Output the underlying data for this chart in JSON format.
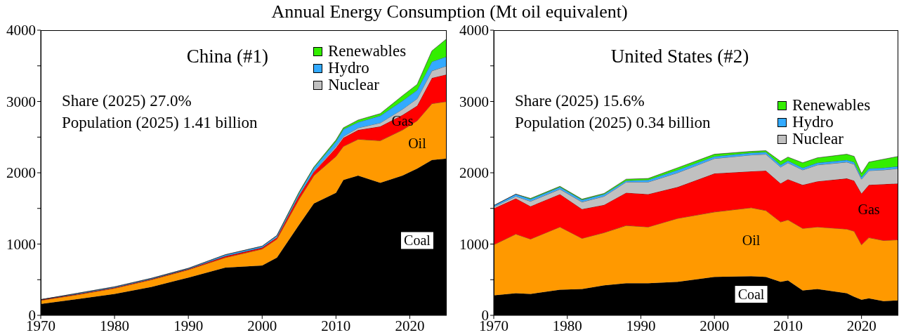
{
  "chart_data": [
    {
      "type": "area",
      "title": "Annual Energy Consumption (Mt oil equivalent)",
      "subtitle": "China (#1)",
      "stacked": true,
      "legend": "top right",
      "annotations": [
        "Share (2025) 27.0%",
        "Population (2025) 1.41 billion"
      ],
      "x": [
        1970,
        1975,
        1980,
        1985,
        1990,
        1995,
        2000,
        2002,
        2005,
        2007,
        2010,
        2011,
        2013,
        2016,
        2019,
        2021,
        2023,
        2025
      ],
      "series": [
        {
          "name": "Coal",
          "color": "#000000",
          "values": [
            160,
            230,
            300,
            400,
            530,
            670,
            700,
            810,
            1270,
            1570,
            1720,
            1900,
            1960,
            1860,
            1960,
            2060,
            2180,
            2200
          ]
        },
        {
          "name": "Oil",
          "color": "#ff9900",
          "values": [
            50,
            60,
            80,
            100,
            110,
            140,
            230,
            260,
            360,
            390,
            510,
            470,
            510,
            590,
            640,
            670,
            790,
            800
          ]
        },
        {
          "name": "Gas",
          "color": "#ff0000",
          "values": [
            10,
            10,
            10,
            10,
            10,
            20,
            20,
            20,
            50,
            50,
            120,
            120,
            130,
            200,
            210,
            210,
            360,
            380
          ]
        },
        {
          "name": "Nuclear",
          "color": "#c0c0c0",
          "values": [
            0,
            0,
            0,
            0,
            0,
            0,
            0,
            10,
            10,
            10,
            20,
            20,
            30,
            50,
            80,
            100,
            100,
            120
          ]
        },
        {
          "name": "Hydro",
          "color": "#33aaff",
          "values": [
            0,
            10,
            10,
            10,
            10,
            20,
            20,
            20,
            30,
            50,
            70,
            100,
            80,
            100,
            120,
            120,
            130,
            130
          ]
        },
        {
          "name": "Renewables",
          "color": "#33ee00",
          "values": [
            0,
            0,
            0,
            0,
            0,
            0,
            0,
            0,
            10,
            10,
            20,
            20,
            30,
            30,
            70,
            80,
            150,
            250
          ]
        }
      ],
      "xlim": [
        1970,
        2025
      ],
      "xticks": [
        1970,
        1980,
        1990,
        2000,
        2010,
        2020
      ],
      "ylim": [
        0,
        4000
      ],
      "yticks": [
        0,
        {
          "value": 500,
          "label": null
        },
        1000,
        {
          "value": 1500,
          "label": null
        },
        2000,
        {
          "value": 2500,
          "label": null
        },
        3000,
        {
          "value": 3500,
          "label": null
        },
        4000
      ]
    },
    {
      "type": "area",
      "subtitle": "United States (#2)",
      "stacked": true,
      "legend": "right",
      "annotations": [
        "Share (2025) 15.6%",
        "Population (2025) 0.34 billion"
      ],
      "x": [
        1970,
        1973,
        1975,
        1979,
        1982,
        1985,
        1988,
        1991,
        1995,
        2000,
        2005,
        2007,
        2009,
        2010,
        2012,
        2014,
        2018,
        2019,
        2020,
        2021,
        2023,
        2025
      ],
      "series": [
        {
          "name": "Coal",
          "color": "#000000",
          "values": [
            280,
            310,
            300,
            360,
            370,
            420,
            450,
            450,
            470,
            540,
            550,
            540,
            470,
            490,
            350,
            370,
            310,
            260,
            220,
            240,
            200,
            210
          ]
        },
        {
          "name": "Oil",
          "color": "#ff9900",
          "values": [
            710,
            830,
            770,
            880,
            710,
            740,
            810,
            790,
            890,
            910,
            960,
            930,
            840,
            850,
            870,
            870,
            900,
            920,
            770,
            850,
            850,
            850
          ]
        },
        {
          "name": "Gas",
          "color": "#ff0000",
          "values": [
            510,
            500,
            460,
            460,
            410,
            390,
            460,
            460,
            440,
            540,
            510,
            560,
            540,
            570,
            610,
            640,
            710,
            710,
            720,
            740,
            790,
            790
          ]
        },
        {
          "name": "Nuclear",
          "color": "#c0c0c0",
          "values": [
            20,
            30,
            70,
            70,
            100,
            120,
            150,
            170,
            200,
            210,
            230,
            230,
            230,
            230,
            210,
            230,
            230,
            230,
            200,
            200,
            200,
            210
          ]
        },
        {
          "name": "Hydro",
          "color": "#33aaff",
          "values": [
            20,
            30,
            30,
            30,
            30,
            30,
            20,
            30,
            40,
            30,
            30,
            30,
            30,
            30,
            30,
            30,
            30,
            30,
            30,
            30,
            30,
            30
          ]
        },
        {
          "name": "Renewables",
          "color": "#33ee00",
          "values": [
            0,
            0,
            10,
            10,
            10,
            10,
            20,
            20,
            30,
            30,
            20,
            20,
            50,
            50,
            70,
            70,
            80,
            80,
            50,
            90,
            120,
            140
          ]
        }
      ],
      "xlim": [
        1970,
        2025
      ],
      "xticks": [
        1970,
        1980,
        1990,
        2000,
        2010,
        2020
      ],
      "ylim": [
        0,
        4000
      ],
      "yticks": [
        0,
        {
          "value": 500,
          "label": null
        },
        1000,
        {
          "value": 1500,
          "label": null
        },
        2000,
        {
          "value": 2500,
          "label": null
        },
        3000,
        {
          "value": 3500,
          "label": null
        },
        4000
      ]
    }
  ]
}
